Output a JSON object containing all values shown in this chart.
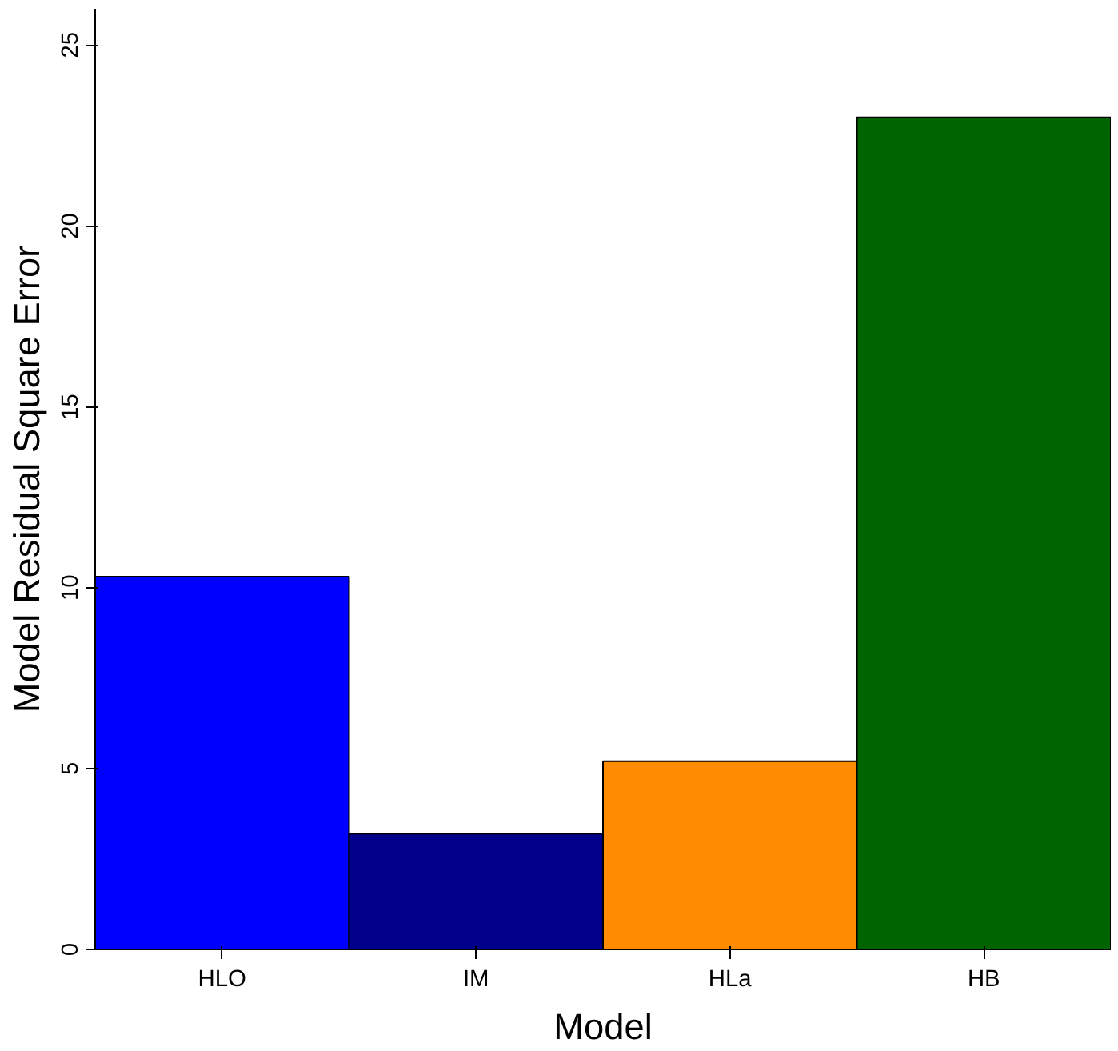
{
  "chart_data": {
    "type": "bar",
    "xlabel": "Model",
    "ylabel": "Model Residual Square Error",
    "categories": [
      "HLO",
      "IM",
      "HLa",
      "HB"
    ],
    "values": [
      10.3,
      3.2,
      5.2,
      23.0
    ],
    "colors": [
      "#0000ff",
      "#00008b",
      "#ff8c00",
      "#006400"
    ],
    "ylim": [
      0,
      26
    ],
    "yticks": [
      0,
      5,
      10,
      15,
      20,
      25
    ],
    "grid": false
  }
}
